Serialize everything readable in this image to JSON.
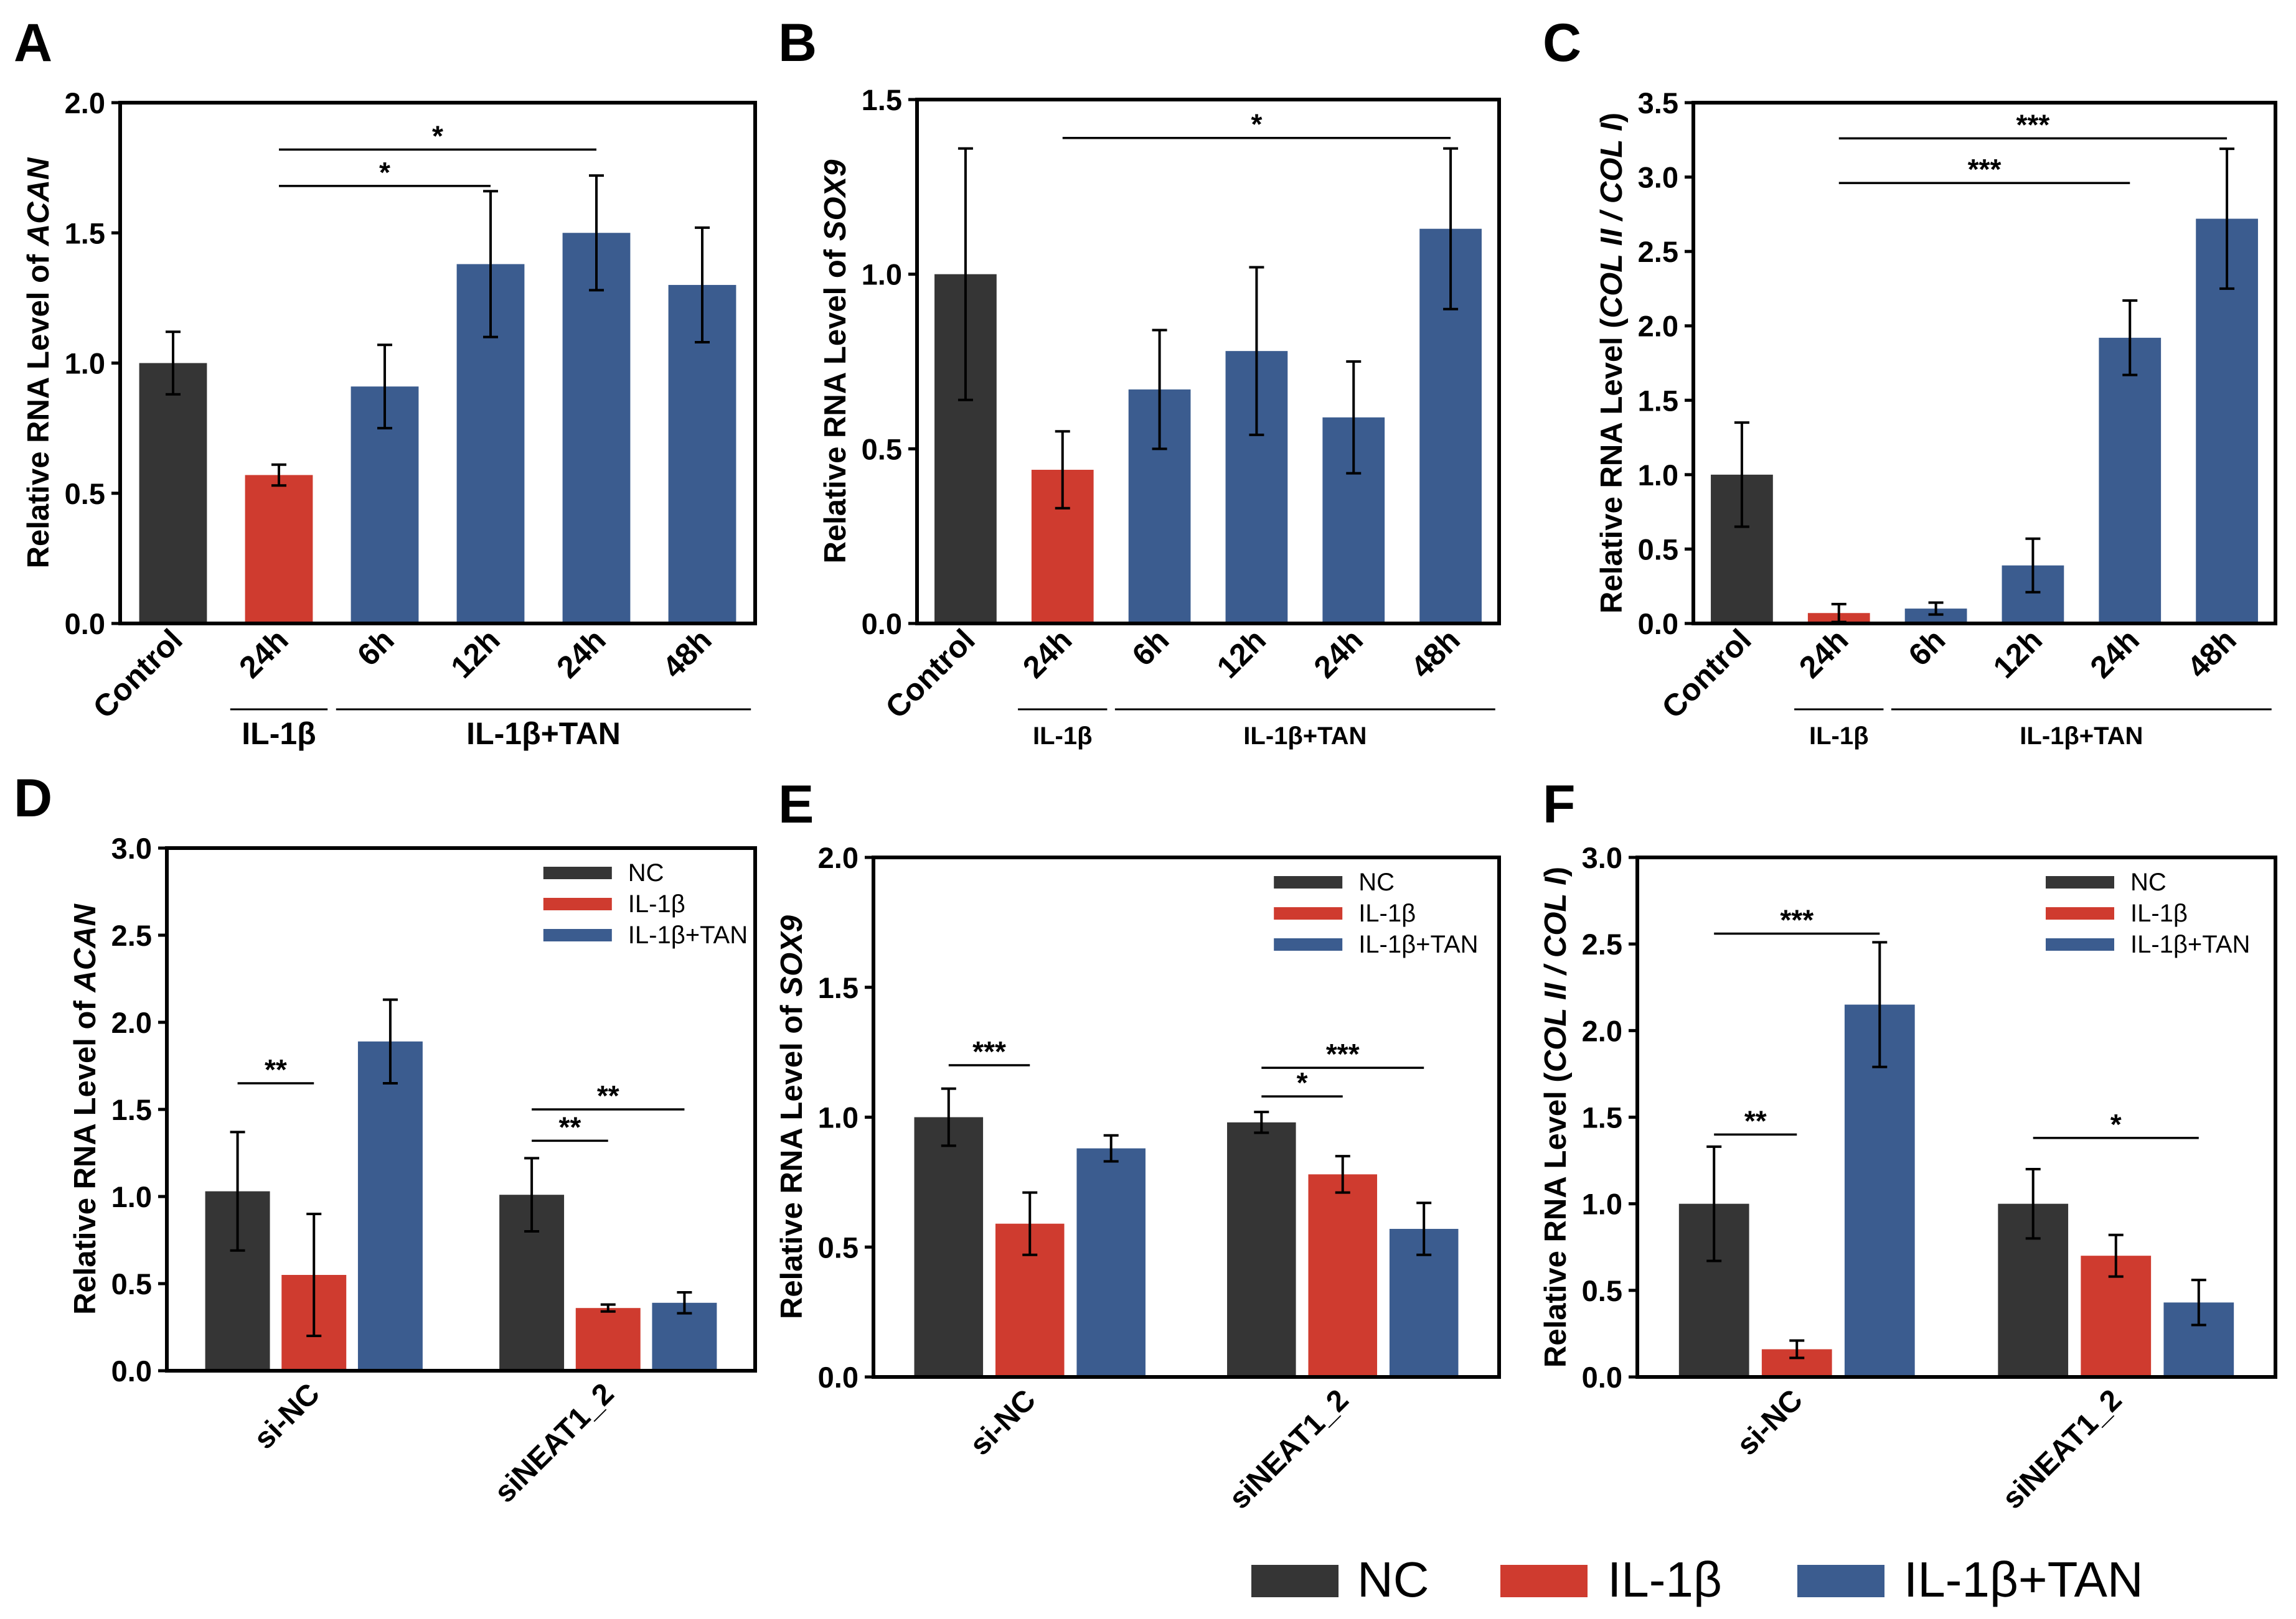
{
  "colors": {
    "NC": "#353535",
    "IL-1β": "#CF3B2F",
    "IL-1β+TAN": "#3B5C8F"
  },
  "chart_data": [
    {
      "panel": "A",
      "type": "bar",
      "ylabel_pre": "Relative RNA Level of ",
      "ylabel_gene": "ACAN",
      "ylabel_post": "",
      "ylim": [
        0,
        2.0
      ],
      "yticks": [
        "0.0",
        "0.5",
        "1.0",
        "1.5",
        "2.0"
      ],
      "categories": [
        "Control",
        "24h",
        "6h",
        "12h",
        "24h",
        "48h"
      ],
      "values": [
        1.0,
        0.57,
        0.91,
        1.38,
        1.5,
        1.3
      ],
      "errors": [
        0.12,
        0.04,
        0.16,
        0.28,
        0.22,
        0.22
      ],
      "colors": [
        "NC",
        "IL-1β",
        "IL-1β+TAN",
        "IL-1β+TAN",
        "IL-1β+TAN",
        "IL-1β+TAN"
      ],
      "groups": [
        {
          "label": "IL-1β",
          "from": 1,
          "to": 1,
          "size": "large"
        },
        {
          "label": "IL-1β+TAN",
          "from": 2,
          "to": 5,
          "size": "large"
        }
      ],
      "significance": [
        {
          "from": 1,
          "to": 3,
          "label": "*",
          "y": 1.68
        },
        {
          "from": 1,
          "to": 4,
          "label": "*",
          "y": 1.82
        }
      ]
    },
    {
      "panel": "B",
      "type": "bar",
      "ylabel_pre": "Relative RNA Level of ",
      "ylabel_gene": "SOX9",
      "ylabel_post": "",
      "ylim": [
        0,
        1.5
      ],
      "yticks": [
        "0.0",
        "0.5",
        "1.0",
        "1.5"
      ],
      "categories": [
        "Control",
        "24h",
        "6h",
        "12h",
        "24h",
        "48h"
      ],
      "values": [
        1.0,
        0.44,
        0.67,
        0.78,
        0.59,
        1.13
      ],
      "errors": [
        0.36,
        0.11,
        0.17,
        0.24,
        0.16,
        0.23
      ],
      "colors": [
        "NC",
        "IL-1β",
        "IL-1β+TAN",
        "IL-1β+TAN",
        "IL-1β+TAN",
        "IL-1β+TAN"
      ],
      "groups": [
        {
          "label": "IL-1β",
          "from": 1,
          "to": 1,
          "size": "small"
        },
        {
          "label": "IL-1β+TAN",
          "from": 2,
          "to": 5,
          "size": "small"
        }
      ],
      "significance": [
        {
          "from": 1,
          "to": 5,
          "label": "*",
          "y": 1.39
        }
      ]
    },
    {
      "panel": "C",
      "type": "bar",
      "ylabel_pre": "Relative RNA Level (",
      "ylabel_gene": "COL II / COL I",
      "ylabel_post": ")",
      "ylim": [
        0,
        3.5
      ],
      "yticks": [
        "0.0",
        "0.5",
        "1.0",
        "1.5",
        "2.0",
        "2.5",
        "3.0",
        "3.5"
      ],
      "categories": [
        "Control",
        "24h",
        "6h",
        "12h",
        "24h",
        "48h"
      ],
      "values": [
        1.0,
        0.07,
        0.1,
        0.39,
        1.92,
        2.72
      ],
      "errors": [
        0.35,
        0.06,
        0.04,
        0.18,
        0.25,
        0.47
      ],
      "colors": [
        "NC",
        "IL-1β",
        "IL-1β+TAN",
        "IL-1β+TAN",
        "IL-1β+TAN",
        "IL-1β+TAN"
      ],
      "groups": [
        {
          "label": "IL-1β",
          "from": 1,
          "to": 1,
          "size": "small"
        },
        {
          "label": "IL-1β+TAN",
          "from": 2,
          "to": 5,
          "size": "small"
        }
      ],
      "significance": [
        {
          "from": 1,
          "to": 4,
          "label": "***",
          "y": 2.96
        },
        {
          "from": 1,
          "to": 5,
          "label": "***",
          "y": 3.26
        }
      ]
    },
    {
      "panel": "D",
      "type": "bar",
      "ylabel_pre": "Relative RNA Level of ",
      "ylabel_gene": "ACAN",
      "ylabel_post": "",
      "ylim": [
        0,
        3.0
      ],
      "yticks": [
        "0.0",
        "0.5",
        "1.0",
        "1.5",
        "2.0",
        "2.5",
        "3.0"
      ],
      "categories": [
        "si-NC",
        "siNEAT1_2"
      ],
      "series": [
        {
          "name": "NC",
          "values": [
            1.03,
            1.01
          ],
          "errors": [
            0.34,
            0.21
          ]
        },
        {
          "name": "IL-1β",
          "values": [
            0.55,
            0.36
          ],
          "errors": [
            0.35,
            0.02
          ]
        },
        {
          "name": "IL-1β+TAN",
          "values": [
            1.89,
            0.39
          ],
          "errors": [
            0.24,
            0.06
          ]
        }
      ],
      "legend": [
        "NC",
        "IL-1β",
        "IL-1β+TAN"
      ],
      "significance": [
        {
          "group": 0,
          "from": 0,
          "to": 1,
          "label": "**",
          "y": 1.65
        },
        {
          "group": 1,
          "from": 0,
          "to": 1,
          "label": "**",
          "y": 1.32
        },
        {
          "group": 1,
          "from": 0,
          "to": 2,
          "label": "**",
          "y": 1.5
        }
      ]
    },
    {
      "panel": "E",
      "type": "bar",
      "ylabel_pre": "Relative RNA Level of ",
      "ylabel_gene": "SOX9",
      "ylabel_post": "",
      "ylim": [
        0,
        2.0
      ],
      "yticks": [
        "0.0",
        "0.5",
        "1.0",
        "1.5",
        "2.0"
      ],
      "categories": [
        "si-NC",
        "siNEAT1_2"
      ],
      "series": [
        {
          "name": "NC",
          "values": [
            1.0,
            0.98
          ],
          "errors": [
            0.11,
            0.04
          ]
        },
        {
          "name": "IL-1β",
          "values": [
            0.59,
            0.78
          ],
          "errors": [
            0.12,
            0.07
          ]
        },
        {
          "name": "IL-1β+TAN",
          "values": [
            0.88,
            0.57
          ],
          "errors": [
            0.05,
            0.1
          ]
        }
      ],
      "legend": [
        "NC",
        "IL-1β",
        "IL-1β+TAN"
      ],
      "significance": [
        {
          "group": 0,
          "from": 0,
          "to": 1,
          "label": "***",
          "y": 1.2
        },
        {
          "group": 1,
          "from": 0,
          "to": 1,
          "label": "*",
          "y": 1.08
        },
        {
          "group": 1,
          "from": 0,
          "to": 2,
          "label": "***",
          "y": 1.19
        }
      ]
    },
    {
      "panel": "F",
      "type": "bar",
      "ylabel_pre": "Relative RNA Level (",
      "ylabel_gene": "COL II / COL I",
      "ylabel_post": ")",
      "ylim": [
        0,
        3.0
      ],
      "yticks": [
        "0.0",
        "0.5",
        "1.0",
        "1.5",
        "2.0",
        "2.5",
        "3.0"
      ],
      "categories": [
        "si-NC",
        "siNEAT1_2"
      ],
      "series": [
        {
          "name": "NC",
          "values": [
            1.0,
            1.0
          ],
          "errors": [
            0.33,
            0.2
          ]
        },
        {
          "name": "IL-1β",
          "values": [
            0.16,
            0.7
          ],
          "errors": [
            0.05,
            0.12
          ]
        },
        {
          "name": "IL-1β+TAN",
          "values": [
            2.15,
            0.43
          ],
          "errors": [
            0.36,
            0.13
          ]
        }
      ],
      "legend": [
        "NC",
        "IL-1β",
        "IL-1β+TAN"
      ],
      "significance": [
        {
          "group": 0,
          "from": 0,
          "to": 1,
          "label": "**",
          "y": 1.4
        },
        {
          "group": 0,
          "from": 0,
          "to": 2,
          "label": "***",
          "y": 2.56
        },
        {
          "group": 1,
          "from": 0,
          "to": 2,
          "label": "*",
          "y": 1.38
        }
      ]
    }
  ],
  "bottom_legend": [
    "NC",
    "IL-1β",
    "IL-1β+TAN"
  ]
}
